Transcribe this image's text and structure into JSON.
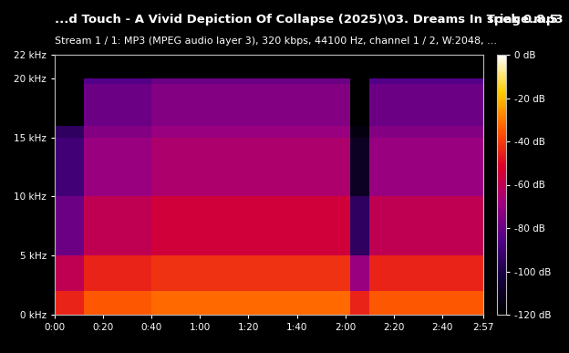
{
  "chart_data": {
    "type": "heatmap",
    "title": "...d Touch - A Vivid Depiction Of Collapse (2025)\\03. Dreams In Triage.mp3",
    "subtitle": "Stream 1 / 1: MP3 (MPEG audio layer 3), 320 kbps, 44100 Hz, channel 1 / 2, W:2048, ...",
    "annotations": [
      "spek 0.8.5"
    ],
    "x_edges": [
      0,
      12,
      40,
      122,
      130,
      177
    ],
    "y_edges": [
      0,
      2,
      5,
      10,
      15,
      16,
      19.5,
      20,
      22
    ],
    "cells": [
      [
        -45,
        -35,
        -32,
        -45,
        -35
      ],
      [
        -60,
        -45,
        -42,
        -70,
        -45
      ],
      [
        -80,
        -60,
        -55,
        -95,
        -60
      ],
      [
        -90,
        -70,
        -65,
        -110,
        -70
      ],
      [
        -95,
        -75,
        -70,
        -115,
        -75
      ],
      [
        -120,
        -80,
        -75,
        -120,
        -80
      ],
      [
        -120,
        -85,
        -80,
        -120,
        -85
      ],
      [
        -120,
        -120,
        -120,
        -120,
        -120
      ]
    ],
    "xlim": [
      0,
      177
    ],
    "xticks": [
      {
        "value": 0,
        "label": "0:00"
      },
      {
        "value": 20,
        "label": "0:20"
      },
      {
        "value": 40,
        "label": "0:40"
      },
      {
        "value": 60,
        "label": "1:00"
      },
      {
        "value": 80,
        "label": "1:20"
      },
      {
        "value": 100,
        "label": "1:40"
      },
      {
        "value": 120,
        "label": "2:00"
      },
      {
        "value": 140,
        "label": "2:20"
      },
      {
        "value": 160,
        "label": "2:40"
      },
      {
        "value": 177,
        "label": "2:57"
      }
    ],
    "ylim": [
      0,
      22
    ],
    "yticks": [
      {
        "value": 0,
        "label": "0 kHz"
      },
      {
        "value": 5,
        "label": "5 kHz"
      },
      {
        "value": 10,
        "label": "10 kHz"
      },
      {
        "value": 15,
        "label": "15 kHz"
      },
      {
        "value": 20,
        "label": "20 kHz"
      },
      {
        "value": 22,
        "label": "22 kHz"
      }
    ],
    "colorbar": {
      "range": [
        -120,
        0
      ],
      "ticks": [
        {
          "value": 0,
          "label": "0 dB"
        },
        {
          "value": -20,
          "label": "-20 dB"
        },
        {
          "value": -40,
          "label": "-40 dB"
        },
        {
          "value": -60,
          "label": "-60 dB"
        },
        {
          "value": -80,
          "label": "-80 dB"
        },
        {
          "value": -100,
          "label": "-100 dB"
        },
        {
          "value": -120,
          "label": "-120 dB"
        }
      ]
    }
  }
}
